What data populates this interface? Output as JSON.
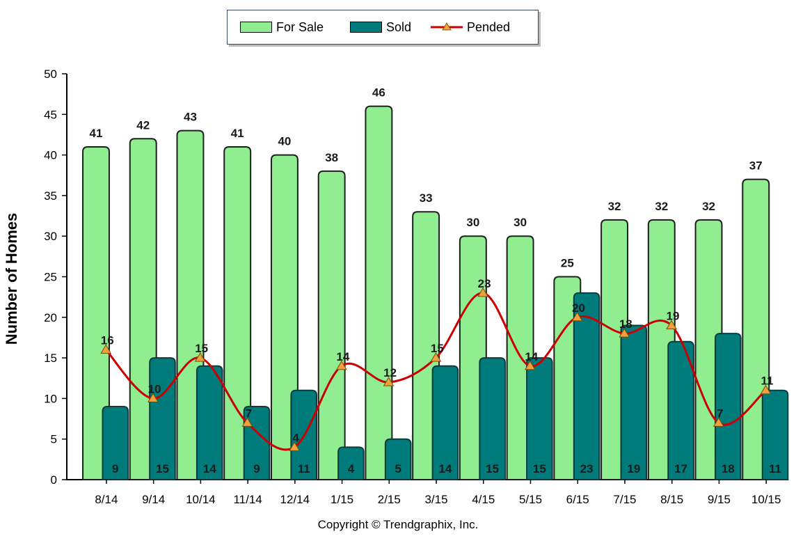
{
  "chart_data": {
    "type": "bar",
    "ylabel": "Number of Homes",
    "xlabel": "",
    "ylim": [
      0,
      50
    ],
    "yticks": [
      "0",
      "5",
      "10",
      "15",
      "20",
      "25",
      "30",
      "35",
      "40",
      "45",
      "50"
    ],
    "categories": [
      "8/14",
      "9/14",
      "10/14",
      "11/14",
      "12/14",
      "1/15",
      "2/15",
      "3/15",
      "4/15",
      "5/15",
      "6/15",
      "7/15",
      "8/15",
      "9/15",
      "10/15"
    ],
    "series": [
      {
        "name": "For Sale",
        "kind": "bar",
        "color": "#90ee90",
        "values": [
          41,
          42,
          43,
          41,
          40,
          38,
          46,
          33,
          30,
          30,
          25,
          32,
          32,
          32,
          37
        ]
      },
      {
        "name": "Sold",
        "kind": "bar",
        "color": "#007b7b",
        "values": [
          9,
          15,
          14,
          9,
          11,
          4,
          5,
          14,
          15,
          15,
          23,
          19,
          17,
          18,
          11
        ]
      },
      {
        "name": "Pended",
        "kind": "line",
        "color": "#cc0000",
        "marker_color": "#f0a040",
        "values": [
          16,
          10,
          15,
          7,
          4,
          14,
          12,
          15,
          23,
          14,
          20,
          18,
          19,
          7,
          11
        ]
      }
    ],
    "legend_position": "top-center",
    "grid": false
  },
  "footer": {
    "copyright": "Copyright © Trendgraphix, Inc."
  }
}
